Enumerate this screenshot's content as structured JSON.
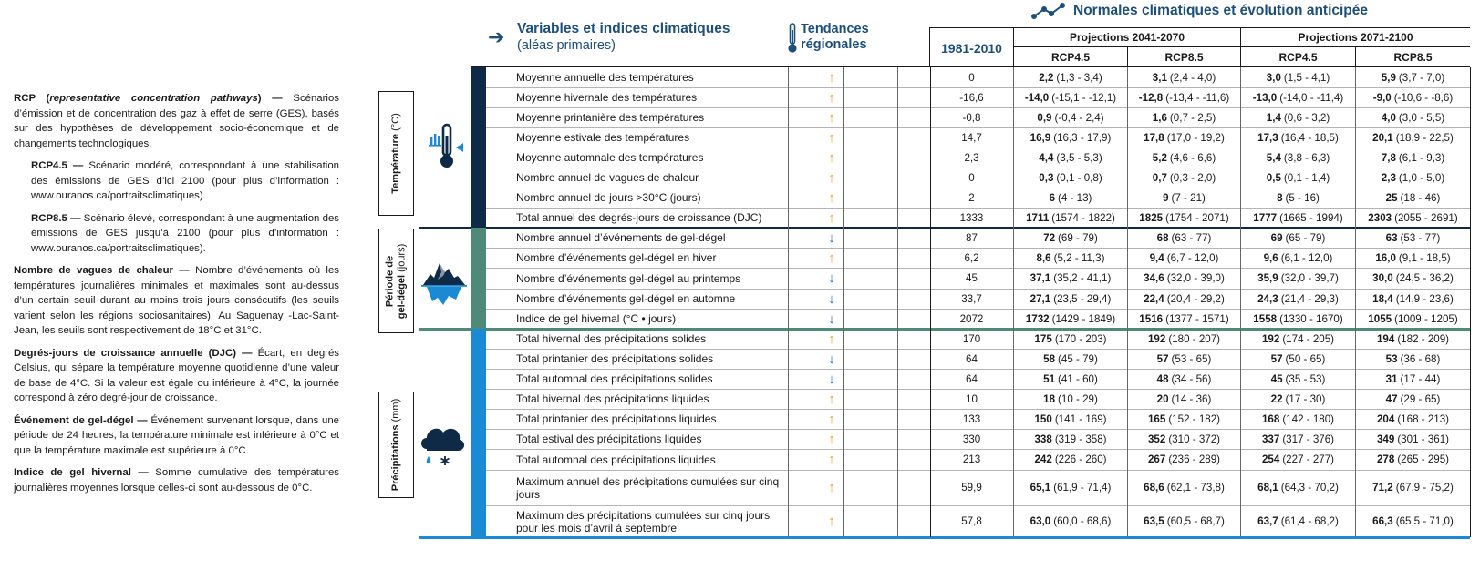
{
  "glossary": {
    "rcp_term": "RCP (",
    "rcp_term_italic": "representative concentration pathways",
    "rcp_term_end": ") —",
    "rcp_desc": "Scénarios d’émission et de concentration des gaz à effet de serre (GES), basés sur des hypothèses de développement socio-économique et de changements technologiques.",
    "rcp45_term": "RCP4.5 —",
    "rcp45_desc": "Scénario modéré, correspondant à une stabilisation des émissions de GES d’ici 2100 (pour plus d’information : www.ouranos.ca/portraitsclimatiques).",
    "rcp85_term": "RCP8.5 —",
    "rcp85_desc": "Scénario élevé, correspondant à une augmentation des émissions de GES jusqu’à 2100 (pour plus d’information : www.ouranos.ca/portraitsclimatiques).",
    "heat_term": "Nombre de vagues de chaleur —",
    "heat_desc": "Nombre d’événements où les températures journalières minimales et maximales sont au-dessus d’un certain seuil durant au moins trois jours consécutifs (les seuils varient selon les régions sociosanitaires). Au Saguenay -Lac-Saint-Jean, les seuils sont respectivement de 18°C et 31°C.",
    "djc_term": "Degrés-jours de croissance annuelle (DJC) —",
    "djc_desc": "Écart, en degrés Celsius, qui sépare la température moyenne quotidienne d’une valeur de base de 4°C. Si la valeur est égale ou inférieure à 4°C, la journée correspond à zéro degré-jour de croissance.",
    "gel_term": "Événement de gel-dégel —",
    "gel_desc": "Événement survenant lorsque, dans une période de 24 heures, la température minimale est inférieure à 0°C et que la température maximale est supérieure à 0°C.",
    "ind_term": "Indice de gel hivernal —",
    "ind_desc": "Somme cumulative des températures journalières moyennes lorsque celles-ci sont au-dessous de 0°C."
  },
  "headers": {
    "variables_title": "Variables et indices climatiques",
    "variables_sub": "(aléas primaires)",
    "tendances_l1": "Tendances",
    "tendances_l2": "régionales",
    "normales": "Normales climatiques et évolution anticipée",
    "period_base": "1981-2010",
    "proj_2041": "Projections 2041-2070",
    "proj_2071": "Projections 2071-2100",
    "rcp45": "RCP4.5",
    "rcp85": "RCP8.5"
  },
  "categories": [
    {
      "label": "Température",
      "unit": "(°C)",
      "color": "#0e2a47"
    },
    {
      "label": "Période de gel-dégel",
      "unit": "(jours)",
      "color": "#4f8a79"
    },
    {
      "label": "Précipitations",
      "unit": "(mm)",
      "color": "#1a8ad4"
    }
  ],
  "category_labels": {
    "temp_l1": "Température",
    "temp_unit": "(°C)",
    "gel_l1": "Période de",
    "gel_l2": "gel-dégel",
    "gel_unit": "(jours)",
    "prec_l1": "Précipitations",
    "prec_unit": "(mm)"
  },
  "colors": {
    "accent": "#1c4f7c",
    "trend_up": "#e79c1c",
    "trend_down": "#2a6db5",
    "temp": "#0e2a47",
    "gel": "#4f8a79",
    "prec": "#1a8ad4"
  },
  "rows": [
    {
      "cat": 0,
      "var": "Moyenne annuelle des températures",
      "trend": "up",
      "base": "0",
      "c1": [
        "2,2",
        "(1,3 - 3,4)"
      ],
      "c2": [
        "3,1",
        "(2,4 - 4,0)"
      ],
      "c3": [
        "3,0",
        "(1,5 - 4,1)"
      ],
      "c4": [
        "5,9",
        "(3,7 - 7,0)"
      ]
    },
    {
      "cat": 0,
      "var": "Moyenne hivernale des températures",
      "trend": "up",
      "base": "-16,6",
      "c1": [
        "-14,0",
        "(-15,1 - -12,1)"
      ],
      "c2": [
        "-12,8",
        "(-13,4 - -11,6)"
      ],
      "c3": [
        "-13,0",
        "(-14,0 - -11,4)"
      ],
      "c4": [
        "-9,0",
        "(-10,6 - -8,6)"
      ]
    },
    {
      "cat": 0,
      "var": "Moyenne printanière des températures",
      "trend": "up",
      "base": "-0,8",
      "c1": [
        "0,9",
        "(-0,4 - 2,4)"
      ],
      "c2": [
        "1,6",
        "(0,7 - 2,5)"
      ],
      "c3": [
        "1,4",
        "(0,6 - 3,2)"
      ],
      "c4": [
        "4,0",
        "(3,0 - 5,5)"
      ]
    },
    {
      "cat": 0,
      "var": "Moyenne estivale des températures",
      "trend": "up",
      "base": "14,7",
      "c1": [
        "16,9",
        "(16,3 - 17,9)"
      ],
      "c2": [
        "17,8",
        "(17,0 - 19,2)"
      ],
      "c3": [
        "17,3",
        "(16,4 - 18,5)"
      ],
      "c4": [
        "20,1",
        "(18,9 - 22,5)"
      ]
    },
    {
      "cat": 0,
      "var": "Moyenne automnale des températures",
      "trend": "up",
      "base": "2,3",
      "c1": [
        "4,4",
        "(3,5 - 5,3)"
      ],
      "c2": [
        "5,2",
        "(4,6 - 6,6)"
      ],
      "c3": [
        "5,4",
        "(3,8 - 6,3)"
      ],
      "c4": [
        "7,8",
        "(6,1 - 9,3)"
      ]
    },
    {
      "cat": 0,
      "var": "Nombre annuel de vagues de chaleur",
      "trend": "up",
      "base": "0",
      "c1": [
        "0,3",
        "(0,1 - 0,8)"
      ],
      "c2": [
        "0,7",
        "(0,3 - 2,0)"
      ],
      "c3": [
        "0,5",
        "(0,1 - 1,4)"
      ],
      "c4": [
        "2,3",
        "(1,0 - 5,0)"
      ]
    },
    {
      "cat": 0,
      "var": "Nombre annuel de jours >30°C  (jours)",
      "trend": "up",
      "base": "2",
      "c1": [
        "6",
        "(4 - 13)"
      ],
      "c2": [
        "9",
        "(7 - 21)"
      ],
      "c3": [
        "8",
        "(5 - 16)"
      ],
      "c4": [
        "25",
        "(18 - 46)"
      ]
    },
    {
      "cat": 0,
      "var": "Total annuel des degrés-jours de croissance  (DJC)",
      "trend": "up",
      "base": "1333",
      "c1": [
        "1711",
        "(1574 - 1822)"
      ],
      "c2": [
        "1825",
        "(1754 - 2071)"
      ],
      "c3": [
        "1777",
        "(1665 - 1994)"
      ],
      "c4": [
        "2303",
        "(2055 - 2691)"
      ]
    },
    {
      "cat": 1,
      "var": "Nombre annuel d’événements de gel-dégel",
      "trend": "down",
      "base": "87",
      "c1": [
        "72",
        "(69 - 79)"
      ],
      "c2": [
        "68",
        "(63 - 77)"
      ],
      "c3": [
        "69",
        "(65 - 79)"
      ],
      "c4": [
        "63",
        "(53 - 77)"
      ]
    },
    {
      "cat": 1,
      "var": "Nombre d’événements gel-dégel en hiver",
      "trend": "up",
      "base": "6,2",
      "c1": [
        "8,6",
        "(5,2 - 11,3)"
      ],
      "c2": [
        "9,4",
        "(6,7 - 12,0)"
      ],
      "c3": [
        "9,6",
        "(6,1 - 12,0)"
      ],
      "c4": [
        "16,0",
        "(9,1 - 18,5)"
      ]
    },
    {
      "cat": 1,
      "var": "Nombre d’événements gel-dégel au printemps",
      "trend": "down",
      "base": "45",
      "c1": [
        "37,1",
        "(35,2 - 41,1)"
      ],
      "c2": [
        "34,6",
        "(32,0 - 39,0)"
      ],
      "c3": [
        "35,9",
        "(32,0 - 39,7)"
      ],
      "c4": [
        "30,0",
        "(24,5 - 36,2)"
      ]
    },
    {
      "cat": 1,
      "var": "Nombre d’événements gel-dégel en automne",
      "trend": "down",
      "base": "33,7",
      "c1": [
        "27,1",
        "(23,5 - 29,4)"
      ],
      "c2": [
        "22,4",
        "(20,4 - 29,2)"
      ],
      "c3": [
        "24,3",
        "(21,4 - 29,3)"
      ],
      "c4": [
        "18,4",
        "(14,9 - 23,6)"
      ]
    },
    {
      "cat": 1,
      "var": "Indice de gel hivernal  (°C • jours)",
      "trend": "down",
      "base": "2072",
      "c1": [
        "1732",
        "(1429 - 1849)"
      ],
      "c2": [
        "1516",
        "(1377 - 1571)"
      ],
      "c3": [
        "1558",
        "(1330 - 1670)"
      ],
      "c4": [
        "1055",
        "(1009 - 1205)"
      ]
    },
    {
      "cat": 2,
      "var": "Total hivernal des précipitations solides",
      "trend": "up",
      "base": "170",
      "c1": [
        "175",
        "(170 - 203)"
      ],
      "c2": [
        "192",
        "(180 - 207)"
      ],
      "c3": [
        "192",
        "(174 - 205)"
      ],
      "c4": [
        "194",
        "(182 - 209)"
      ]
    },
    {
      "cat": 2,
      "var": "Total printanier des précipitations solides",
      "trend": "down",
      "base": "64",
      "c1": [
        "58",
        "(45 - 79)"
      ],
      "c2": [
        "57",
        "(53 - 65)"
      ],
      "c3": [
        "57",
        "(50 - 65)"
      ],
      "c4": [
        "53",
        "(36 - 68)"
      ]
    },
    {
      "cat": 2,
      "var": "Total automnal des précipitations solides",
      "trend": "down",
      "base": "64",
      "c1": [
        "51",
        "(41 - 60)"
      ],
      "c2": [
        "48",
        "(34 - 56)"
      ],
      "c3": [
        "45",
        "(35 - 53)"
      ],
      "c4": [
        "31",
        "(17 - 44)"
      ]
    },
    {
      "cat": 2,
      "var": "Total hivernal des précipitations liquides",
      "trend": "up",
      "base": "10",
      "c1": [
        "18",
        "(10 - 29)"
      ],
      "c2": [
        "20",
        "(14 - 36)"
      ],
      "c3": [
        "22",
        "(17 - 30)"
      ],
      "c4": [
        "47",
        "(29 - 65)"
      ]
    },
    {
      "cat": 2,
      "var": "Total printanier des précipitations liquides",
      "trend": "up",
      "base": "133",
      "c1": [
        "150",
        "(141 - 169)"
      ],
      "c2": [
        "165",
        "(152 - 182)"
      ],
      "c3": [
        "168",
        "(142 - 180)"
      ],
      "c4": [
        "204",
        "(168 - 213)"
      ]
    },
    {
      "cat": 2,
      "var": "Total estival des précipitations liquides",
      "trend": "up",
      "base": "330",
      "c1": [
        "338",
        "(319 - 358)"
      ],
      "c2": [
        "352",
        "(310 - 372)"
      ],
      "c3": [
        "337",
        "(317 - 376)"
      ],
      "c4": [
        "349",
        "(301 - 361)"
      ]
    },
    {
      "cat": 2,
      "var": "Total automnal des précipitations liquides",
      "trend": "up",
      "base": "213",
      "c1": [
        "242",
        "(226 - 260)"
      ],
      "c2": [
        "267",
        "(236 - 289)"
      ],
      "c3": [
        "254",
        "(227 - 277)"
      ],
      "c4": [
        "278",
        "(265 - 295)"
      ]
    },
    {
      "cat": 2,
      "var": "Maximum annuel des précipitations cumulées sur cinq jours",
      "trend": "up",
      "base": "59,9",
      "c1": [
        "65,1",
        "(61,9 - 71,4)"
      ],
      "c2": [
        "68,6",
        "(62,1 - 73,8)"
      ],
      "c3": [
        "68,1",
        "(64,3 - 70,2)"
      ],
      "c4": [
        "71,2",
        "(67,9 - 75,2)"
      ]
    },
    {
      "cat": 2,
      "var": "Maximum des précipitations cumulées sur cinq jours pour les mois d’avril à septembre",
      "trend": "up",
      "base": "57,8",
      "c1": [
        "63,0",
        "(60,0 - 68,6)"
      ],
      "c2": [
        "63,5",
        "(60,5 - 68,7)"
      ],
      "c3": [
        "63,7",
        "(61,4 - 68,2)"
      ],
      "c4": [
        "66,3",
        "(65,5 - 71,0)"
      ]
    }
  ],
  "icons": [
    "thermometer-icon",
    "iceberg-icon",
    "rain-cloud-icon",
    "arrow-right-icon",
    "network-icon"
  ]
}
